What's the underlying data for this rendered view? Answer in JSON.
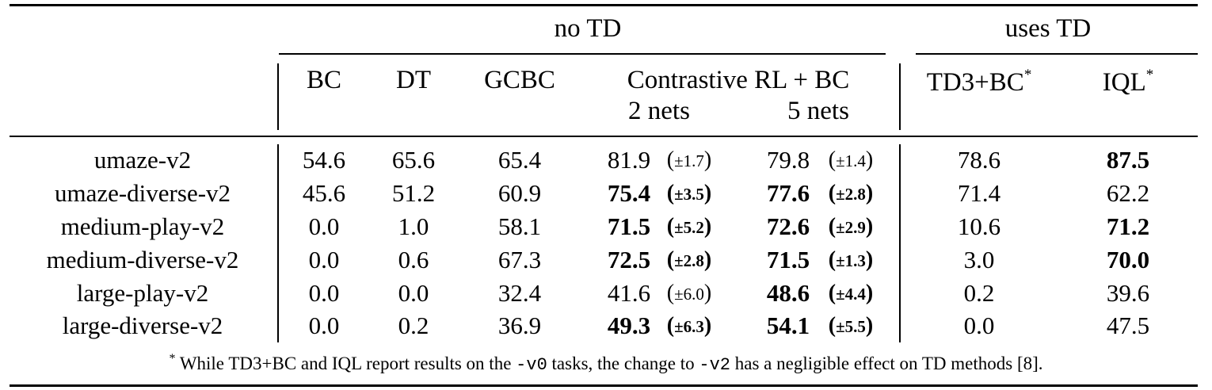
{
  "groups": {
    "no_td": "no TD",
    "uses_td": "uses TD"
  },
  "headers": {
    "bc": "BC",
    "dt": "DT",
    "gcbc": "GCBC",
    "contrastive": "Contrastive RL + BC",
    "two_nets": "2 nets",
    "five_nets": "5 nets",
    "td3bc": "TD3+BC",
    "iql": "IQL",
    "star": "*"
  },
  "rows": [
    {
      "task": "umaze-v2",
      "bc": "54.6",
      "dt": "65.6",
      "gcbc": "65.4",
      "c2": {
        "v": "81.9",
        "s": "±1.7",
        "bold": false
      },
      "c5": {
        "v": "79.8",
        "s": "±1.4",
        "bold": false
      },
      "td3": {
        "v": "78.6",
        "bold": false
      },
      "iql": {
        "v": "87.5",
        "bold": true
      }
    },
    {
      "task": "umaze-diverse-v2",
      "bc": "45.6",
      "dt": "51.2",
      "gcbc": "60.9",
      "c2": {
        "v": "75.4",
        "s": "±3.5",
        "bold": true
      },
      "c5": {
        "v": "77.6",
        "s": "±2.8",
        "bold": true
      },
      "td3": {
        "v": "71.4",
        "bold": false
      },
      "iql": {
        "v": "62.2",
        "bold": false
      }
    },
    {
      "task": "medium-play-v2",
      "bc": "0.0",
      "dt": "1.0",
      "gcbc": "58.1",
      "c2": {
        "v": "71.5",
        "s": "±5.2",
        "bold": true
      },
      "c5": {
        "v": "72.6",
        "s": "±2.9",
        "bold": true
      },
      "td3": {
        "v": "10.6",
        "bold": false
      },
      "iql": {
        "v": "71.2",
        "bold": true
      }
    },
    {
      "task": "medium-diverse-v2",
      "bc": "0.0",
      "dt": "0.6",
      "gcbc": "67.3",
      "c2": {
        "v": "72.5",
        "s": "±2.8",
        "bold": true
      },
      "c5": {
        "v": "71.5",
        "s": "±1.3",
        "bold": true
      },
      "td3": {
        "v": "3.0",
        "bold": false
      },
      "iql": {
        "v": "70.0",
        "bold": true
      }
    },
    {
      "task": "large-play-v2",
      "bc": "0.0",
      "dt": "0.0",
      "gcbc": "32.4",
      "c2": {
        "v": "41.6",
        "s": "±6.0",
        "bold": false
      },
      "c5": {
        "v": "48.6",
        "s": "±4.4",
        "bold": true
      },
      "td3": {
        "v": "0.2",
        "bold": false
      },
      "iql": {
        "v": "39.6",
        "bold": false
      }
    },
    {
      "task": "large-diverse-v2",
      "bc": "0.0",
      "dt": "0.2",
      "gcbc": "36.9",
      "c2": {
        "v": "49.3",
        "s": "±6.3",
        "bold": true
      },
      "c5": {
        "v": "54.1",
        "s": "±5.5",
        "bold": true
      },
      "td3": {
        "v": "0.0",
        "bold": false
      },
      "iql": {
        "v": "47.5",
        "bold": false
      }
    }
  ],
  "footnote": {
    "star": "*",
    "part1": "While TD3+BC and IQL report results on the",
    "code1": "-v0",
    "part2": "tasks, the change to",
    "code2": "-v2",
    "part3": "has a negligible effect on TD methods [8]."
  }
}
